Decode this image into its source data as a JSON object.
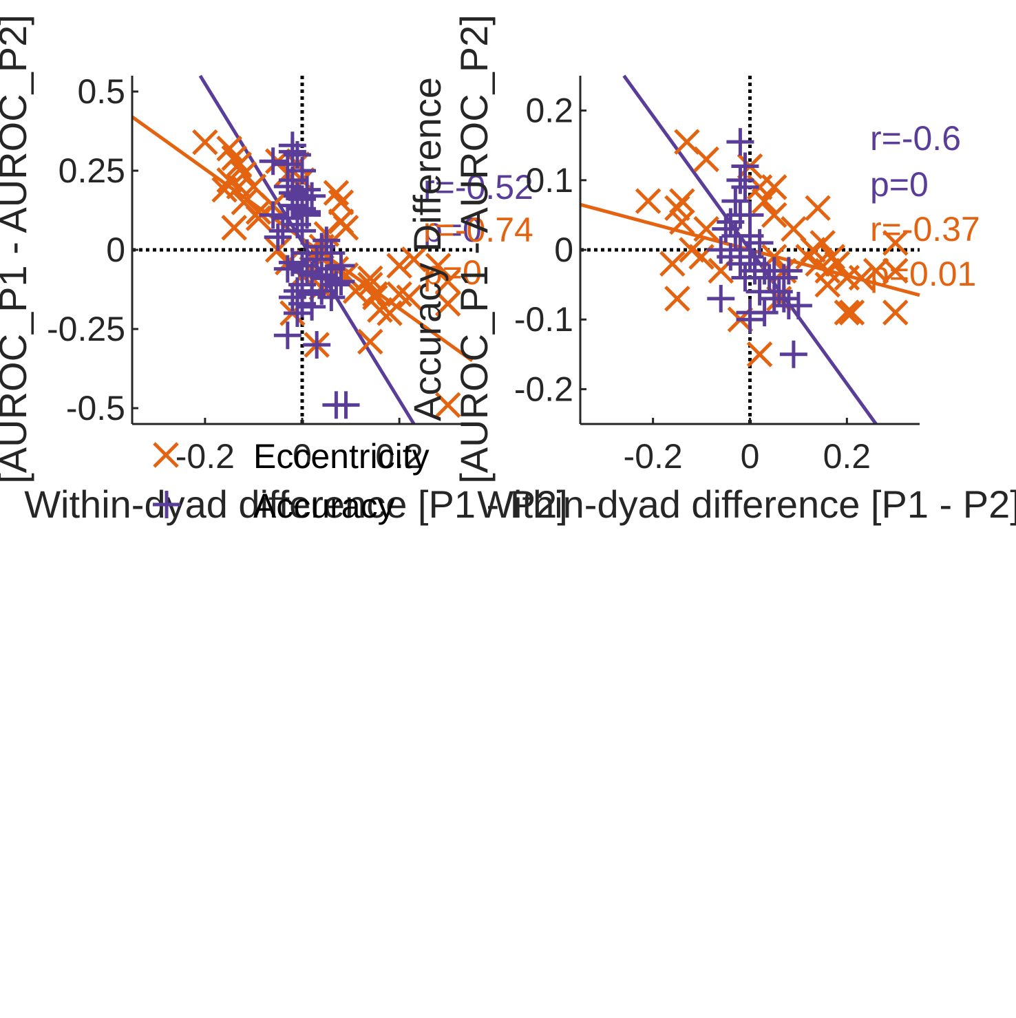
{
  "colors": {
    "accuracy": "#5a3d99",
    "eccentricity": "#e36311",
    "axis": "#262626",
    "reference": "#000000"
  },
  "chart_data": [
    {
      "type": "scatter",
      "title": "",
      "xlabel": "Within-dyad difference [P1 - P2]",
      "ylabel": "[AUROC_P1 - AUROC_P2]",
      "xlim": [
        -0.35,
        0.35
      ],
      "ylim": [
        -0.55,
        0.55
      ],
      "xticks": [
        -0.2,
        0,
        0.2
      ],
      "xtick_labels": [
        "-0.2",
        "0",
        "0.2"
      ],
      "yticks": [
        -0.5,
        -0.25,
        0,
        0.25,
        0.5
      ],
      "ytick_labels": [
        "-0.5",
        "-0.25",
        "0",
        "0.25",
        "0.5"
      ],
      "grid": false,
      "reference_lines": "dotted lines at x = 0 and y = 0",
      "legend": {
        "placement": "below-left",
        "entries": [
          {
            "label": "Eccentricity",
            "marker": "x-icon",
            "series": "eccentricity"
          },
          {
            "label": "Accuracy",
            "marker": "plus-icon",
            "series": "accuracy"
          }
        ]
      },
      "annotations": [
        {
          "text": "r=-0.52",
          "series": "accuracy"
        },
        {
          "text": "p=0",
          "series": "accuracy"
        },
        {
          "text": "r=-0.74",
          "series": "eccentricity"
        },
        {
          "text": "p=0",
          "series": "eccentricity"
        }
      ],
      "series": [
        {
          "name": "Eccentricity",
          "key": "eccentricity",
          "marker": "x",
          "fit": {
            "x": [
              -0.35,
              0.35
            ],
            "y": [
              0.42,
              -0.35
            ]
          },
          "points": [
            [
              -0.2,
              0.34
            ],
            [
              -0.15,
              0.32
            ],
            [
              -0.14,
              0.29
            ],
            [
              -0.13,
              0.27
            ],
            [
              -0.12,
              0.24
            ],
            [
              -0.15,
              0.22
            ],
            [
              -0.13,
              0.2
            ],
            [
              -0.16,
              0.19
            ],
            [
              -0.1,
              0.2
            ],
            [
              -0.12,
              0.15
            ],
            [
              -0.09,
              0.12
            ],
            [
              -0.14,
              0.07
            ],
            [
              -0.09,
              0.1
            ],
            [
              -0.06,
              0.14
            ],
            [
              -0.05,
              0.28
            ],
            [
              -0.03,
              0.24
            ],
            [
              -0.01,
              0.27
            ],
            [
              0.0,
              0.22
            ],
            [
              0.07,
              0.18
            ],
            [
              0.08,
              0.15
            ],
            [
              0.08,
              0.09
            ],
            [
              0.09,
              0.07
            ],
            [
              0.05,
              0.05
            ],
            [
              0.03,
              -0.01
            ],
            [
              0.04,
              0.01
            ],
            [
              -0.03,
              -0.04
            ],
            [
              -0.05,
              0.0
            ],
            [
              0.0,
              -0.08
            ],
            [
              0.02,
              -0.06
            ],
            [
              0.07,
              -0.06
            ],
            [
              0.09,
              -0.08
            ],
            [
              0.14,
              -0.09
            ],
            [
              0.14,
              -0.11
            ],
            [
              0.11,
              -0.13
            ],
            [
              0.15,
              -0.14
            ],
            [
              0.15,
              -0.15
            ],
            [
              0.16,
              -0.19
            ],
            [
              0.18,
              -0.2
            ],
            [
              0.2,
              -0.14
            ],
            [
              0.22,
              -0.15
            ],
            [
              0.2,
              -0.05
            ],
            [
              0.23,
              -0.03
            ],
            [
              0.28,
              -0.05
            ],
            [
              0.3,
              -0.1
            ],
            [
              0.3,
              -0.17
            ],
            [
              0.14,
              -0.29
            ],
            [
              0.03,
              -0.3
            ],
            [
              -0.02,
              -0.2
            ],
            [
              0.3,
              -0.49
            ],
            [
              0.04,
              -0.12
            ]
          ]
        },
        {
          "name": "Accuracy",
          "key": "accuracy",
          "marker": "plus",
          "fit": {
            "x": [
              -0.21,
              0.23
            ],
            "y": [
              0.55,
              -0.55
            ]
          },
          "points": [
            [
              -0.02,
              0.33
            ],
            [
              -0.02,
              0.31
            ],
            [
              -0.01,
              0.3
            ],
            [
              -0.06,
              0.28
            ],
            [
              -0.03,
              0.27
            ],
            [
              0.0,
              0.25
            ],
            [
              -0.02,
              0.22
            ],
            [
              -0.03,
              0.2
            ],
            [
              -0.02,
              0.18
            ],
            [
              -0.01,
              0.17
            ],
            [
              0.0,
              0.16
            ],
            [
              -0.02,
              0.14
            ],
            [
              0.0,
              0.13
            ],
            [
              0.01,
              0.11
            ],
            [
              -0.03,
              0.1
            ],
            [
              -0.01,
              0.08
            ],
            [
              0.0,
              0.06
            ],
            [
              -0.04,
              0.06
            ],
            [
              -0.05,
              0.04
            ],
            [
              0.01,
              0.19
            ],
            [
              0.02,
              0.17
            ],
            [
              0.01,
              0.12
            ],
            [
              -0.06,
              0.11
            ],
            [
              0.05,
              0.03
            ],
            [
              0.04,
              0.01
            ],
            [
              0.06,
              -0.01
            ],
            [
              0.01,
              -0.01
            ],
            [
              0.03,
              -0.03
            ],
            [
              -0.02,
              -0.04
            ],
            [
              -0.03,
              -0.06
            ],
            [
              0.0,
              -0.05
            ],
            [
              0.01,
              -0.07
            ],
            [
              0.02,
              -0.08
            ],
            [
              0.04,
              -0.08
            ],
            [
              0.05,
              -0.09
            ],
            [
              0.06,
              -0.06
            ],
            [
              0.08,
              -0.05
            ],
            [
              0.08,
              -0.1
            ],
            [
              0.07,
              -0.11
            ],
            [
              0.0,
              -0.11
            ],
            [
              -0.01,
              -0.13
            ],
            [
              0.02,
              -0.14
            ],
            [
              -0.02,
              -0.15
            ],
            [
              0.0,
              -0.17
            ],
            [
              0.02,
              -0.18
            ],
            [
              -0.01,
              -0.2
            ],
            [
              0.04,
              -0.13
            ],
            [
              0.06,
              -0.15
            ],
            [
              -0.03,
              -0.27
            ],
            [
              0.03,
              -0.3
            ],
            [
              0.07,
              -0.49
            ],
            [
              0.09,
              -0.49
            ]
          ]
        }
      ]
    },
    {
      "type": "scatter",
      "title": "",
      "xlabel": "Within-dyad difference [P1 - P2]",
      "ylabel_lines": [
        "Accuracy Difference",
        "[AUROC_P1 - AUROC_P2]"
      ],
      "xlim": [
        -0.35,
        0.35
      ],
      "ylim": [
        -0.25,
        0.25
      ],
      "xticks": [
        -0.2,
        0,
        0.2
      ],
      "xtick_labels": [
        "-0.2",
        "0",
        "0.2"
      ],
      "yticks": [
        -0.2,
        -0.1,
        0,
        0.1,
        0.2
      ],
      "ytick_labels": [
        "-0.2",
        "-0.1",
        "0",
        "0.1",
        "0.2"
      ],
      "grid": false,
      "reference_lines": "dotted lines at x = 0 and y = 0",
      "annotations": [
        {
          "text": "r=-0.6",
          "series": "accuracy"
        },
        {
          "text": "p=0",
          "series": "accuracy"
        },
        {
          "text": "r=-0.37",
          "series": "eccentricity"
        },
        {
          "text": "p=0.01",
          "series": "eccentricity"
        }
      ],
      "series": [
        {
          "key": "eccentricity",
          "marker": "x",
          "fit": {
            "x": [
              -0.35,
              0.35
            ],
            "y": [
              0.065,
              -0.065
            ]
          },
          "points": [
            [
              -0.13,
              0.155
            ],
            [
              -0.09,
              0.13
            ],
            [
              -0.21,
              0.07
            ],
            [
              -0.14,
              0.07
            ],
            [
              -0.15,
              0.06
            ],
            [
              -0.14,
              0.04
            ],
            [
              -0.09,
              0.03
            ],
            [
              -0.12,
              0.0
            ],
            [
              -0.1,
              -0.01
            ],
            [
              -0.16,
              -0.02
            ],
            [
              -0.15,
              -0.07
            ],
            [
              -0.06,
              -0.03
            ],
            [
              0.0,
              0.12
            ],
            [
              0.02,
              0.09
            ],
            [
              0.05,
              0.09
            ],
            [
              0.03,
              0.07
            ],
            [
              0.05,
              0.05
            ],
            [
              0.09,
              0.03
            ],
            [
              0.14,
              0.06
            ],
            [
              0.13,
              0.0
            ],
            [
              0.15,
              0.01
            ],
            [
              0.17,
              -0.01
            ],
            [
              0.12,
              -0.01
            ],
            [
              0.14,
              -0.02
            ],
            [
              0.16,
              -0.03
            ],
            [
              0.18,
              -0.02
            ],
            [
              0.16,
              -0.05
            ],
            [
              0.2,
              -0.04
            ],
            [
              0.23,
              -0.04
            ],
            [
              0.26,
              -0.03
            ],
            [
              0.3,
              -0.03
            ],
            [
              0.3,
              0.01
            ],
            [
              0.2,
              -0.09
            ],
            [
              0.21,
              -0.09
            ],
            [
              0.3,
              -0.09
            ],
            [
              0.05,
              -0.01
            ],
            [
              0.07,
              -0.03
            ],
            [
              -0.02,
              -0.1
            ],
            [
              0.02,
              -0.15
            ],
            [
              0.06,
              -0.07
            ]
          ]
        },
        {
          "key": "accuracy",
          "marker": "plus",
          "fit": {
            "x": [
              -0.26,
              0.26
            ],
            "y": [
              0.25,
              -0.25
            ]
          },
          "points": [
            [
              -0.02,
              0.155
            ],
            [
              -0.01,
              0.12
            ],
            [
              -0.02,
              0.1
            ],
            [
              -0.01,
              0.09
            ],
            [
              -0.03,
              0.07
            ],
            [
              -0.02,
              0.05
            ],
            [
              0.0,
              0.05
            ],
            [
              -0.04,
              0.04
            ],
            [
              -0.05,
              0.03
            ],
            [
              -0.03,
              0.02
            ],
            [
              0.0,
              0.02
            ],
            [
              -0.02,
              0.0
            ],
            [
              0.0,
              -0.01
            ],
            [
              0.01,
              -0.02
            ],
            [
              -0.02,
              -0.02
            ],
            [
              -0.04,
              -0.01
            ],
            [
              0.02,
              0.01
            ],
            [
              0.01,
              -0.03
            ],
            [
              0.03,
              -0.03
            ],
            [
              0.04,
              -0.04
            ],
            [
              0.05,
              -0.03
            ],
            [
              0.07,
              -0.04
            ],
            [
              0.08,
              -0.03
            ],
            [
              0.06,
              -0.06
            ],
            [
              0.05,
              -0.07
            ],
            [
              0.07,
              -0.07
            ],
            [
              0.08,
              -0.08
            ],
            [
              0.03,
              -0.09
            ],
            [
              0.0,
              -0.09
            ],
            [
              0.1,
              -0.08
            ],
            [
              0.02,
              -0.06
            ],
            [
              -0.06,
              -0.07
            ],
            [
              0.0,
              -0.1
            ],
            [
              0.09,
              -0.15
            ],
            [
              -0.06,
              0.0
            ],
            [
              -0.01,
              -0.04
            ]
          ]
        }
      ]
    }
  ]
}
